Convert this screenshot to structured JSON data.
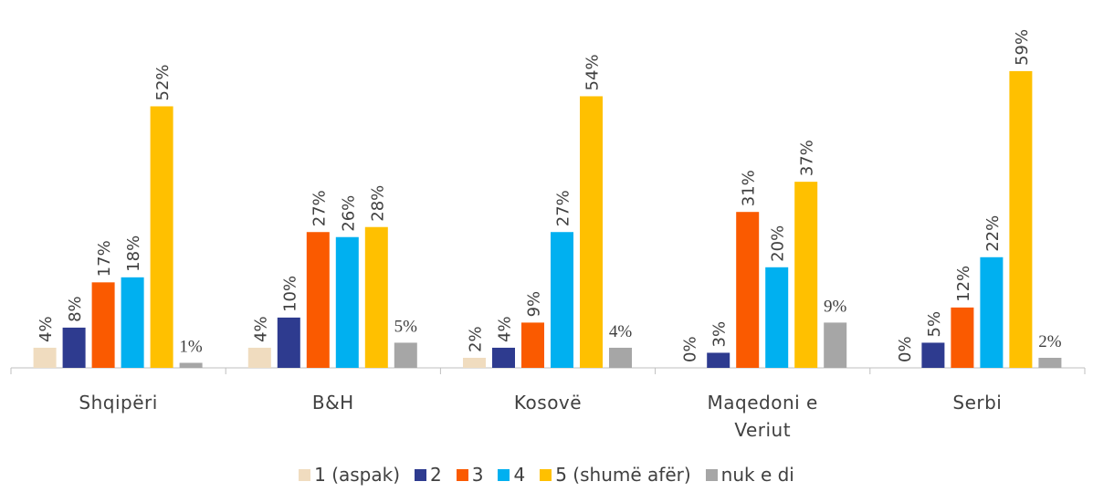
{
  "chart_data": {
    "type": "bar",
    "categories": [
      "Shqipëri",
      "B&H",
      "Kosovë",
      "Maqedoni e Veriut",
      "Serbi"
    ],
    "series": [
      {
        "name": "1 (aspak)",
        "color": "#f0dcbf",
        "values": [
          4,
          4,
          2,
          0,
          0
        ],
        "value_labels": [
          "4%",
          "4%",
          "2%",
          "0%",
          "0%"
        ]
      },
      {
        "name": "2",
        "color": "#2e3b8f",
        "values": [
          8,
          10,
          4,
          3,
          5
        ],
        "value_labels": [
          "8%",
          "10%",
          "4%",
          "3%",
          "5%"
        ]
      },
      {
        "name": "3",
        "color": "#fa5a00",
        "values": [
          17,
          27,
          9,
          31,
          12
        ],
        "value_labels": [
          "17%",
          "27%",
          "9%",
          "31%",
          "12%"
        ]
      },
      {
        "name": "4",
        "color": "#00b0f0",
        "values": [
          18,
          26,
          27,
          20,
          22
        ],
        "value_labels": [
          "18%",
          "26%",
          "27%",
          "20%",
          "22%"
        ]
      },
      {
        "name": "5 (shumë afër)",
        "color": "#ffc000",
        "values": [
          52,
          28,
          54,
          37,
          59
        ],
        "value_labels": [
          "52%",
          "28%",
          "54%",
          "37%",
          "59%"
        ]
      },
      {
        "name": "nuk e di",
        "color": "#a6a6a6",
        "values": [
          1,
          5,
          4,
          9,
          2
        ],
        "value_labels": [
          "1%",
          "5%",
          "4%",
          "9%",
          "2%"
        ]
      }
    ],
    "ylim": [
      0,
      65
    ]
  }
}
